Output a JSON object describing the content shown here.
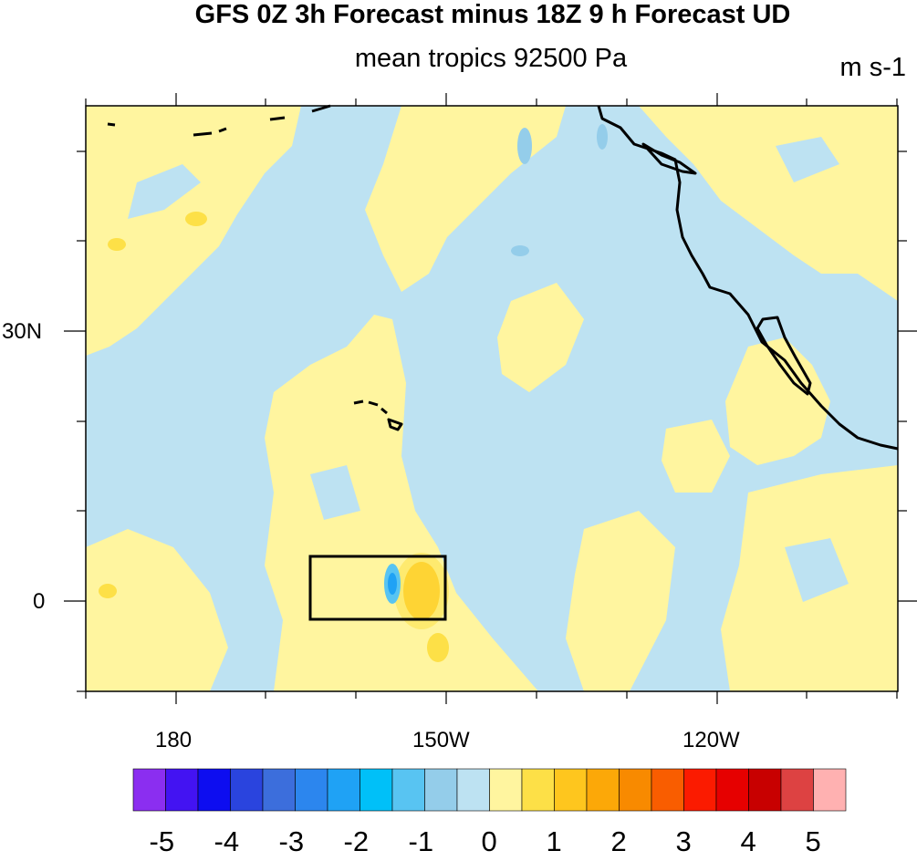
{
  "title": "GFS 0Z 3h Forecast minus 18Z 9 h Forecast UD",
  "subtitle": "mean tropics 92500 Pa",
  "units": "m s-1",
  "map": {
    "lat_labels": [
      "30N",
      "0"
    ],
    "lon_labels": [
      "180",
      "150W",
      "120W"
    ]
  },
  "colorbar": {
    "colors": [
      "#8b2ef0",
      "#4313f2",
      "#0d0df0",
      "#2a44de",
      "#3c6edc",
      "#2c86ee",
      "#1fa2f5",
      "#00c0f8",
      "#58c4f2",
      "#94cdea",
      "#bde2f2",
      "#fff59f",
      "#fde047",
      "#fec61e",
      "#fca808",
      "#f88a00",
      "#f95d00",
      "#fb1b00",
      "#e60000",
      "#c80000",
      "#dd4242",
      "#ffb1b1"
    ],
    "tick_labels": [
      "-5",
      "-4",
      "-3",
      "-2",
      "-1",
      "0",
      "1",
      "2",
      "3",
      "4",
      "5"
    ]
  },
  "colors": {
    "negative_fill": "#bde2f2",
    "positive_fill": "#fff59f"
  }
}
